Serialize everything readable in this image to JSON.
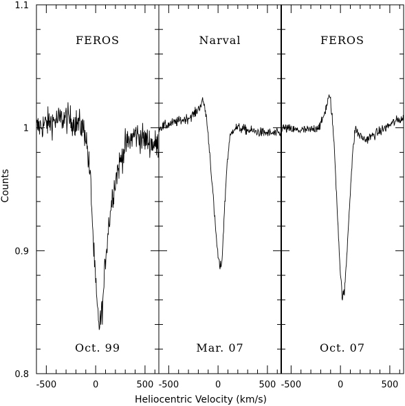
{
  "chart_data": {
    "type": "line",
    "title": "",
    "xlabel": "Heliocentric Velocity (km/s)",
    "ylabel": "Counts",
    "ylim": [
      0.8,
      1.1
    ],
    "yticks": [
      "0.8",
      "0.9",
      "1",
      "1.1"
    ],
    "xticks": [
      "-500",
      "0",
      "500"
    ],
    "grid": false,
    "panels": [
      {
        "instrument": "FEROS",
        "date": "Oct. 99",
        "xlim": [
          -600,
          640
        ],
        "noise": 0.012,
        "series": [
          {
            "x": [
              -600,
              -450,
              -300,
              -150,
              -100,
              -50,
              -20,
              0,
              20,
              40,
              60,
              80,
              100,
              130,
              170,
              220,
              300,
              400,
              500,
              640
            ],
            "y": [
              1.0,
              1.005,
              1.008,
              1.002,
              0.995,
              0.955,
              0.9,
              0.872,
              0.848,
              0.84,
              0.848,
              0.865,
              0.895,
              0.92,
              0.945,
              0.965,
              0.985,
              0.995,
              0.99,
              0.985
            ]
          }
        ]
      },
      {
        "instrument": "Narval",
        "date": "Mar. 07",
        "xlim": [
          -600,
          640
        ],
        "noise": 0.004,
        "series": [
          {
            "x": [
              -600,
              -450,
              -300,
              -230,
              -180,
              -150,
              -120,
              -90,
              -60,
              -30,
              0,
              20,
              40,
              60,
              90,
              120,
              160,
              200,
              300,
              450,
              640
            ],
            "y": [
              1.0,
              1.004,
              1.008,
              1.012,
              1.018,
              1.022,
              1.01,
              0.985,
              0.955,
              0.922,
              0.895,
              0.886,
              0.892,
              0.925,
              0.97,
              0.992,
              1.0,
              1.0,
              0.998,
              0.996,
              0.995
            ]
          }
        ]
      },
      {
        "instrument": "FEROS",
        "date": "Oct. 07",
        "xlim": [
          -600,
          640
        ],
        "noise": 0.004,
        "series": [
          {
            "x": [
              -600,
              -450,
              -300,
              -200,
              -150,
              -120,
              -100,
              -80,
              -60,
              -30,
              0,
              20,
              40,
              60,
              90,
              120,
              150,
              180,
              250,
              400,
              550,
              640
            ],
            "y": [
              1.0,
              0.998,
              0.998,
              1.002,
              1.015,
              1.025,
              1.022,
              1.005,
              0.98,
              0.93,
              0.88,
              0.862,
              0.866,
              0.89,
              0.935,
              0.975,
              1.0,
              0.995,
              0.99,
              0.997,
              1.005,
              1.008
            ]
          }
        ]
      }
    ]
  }
}
